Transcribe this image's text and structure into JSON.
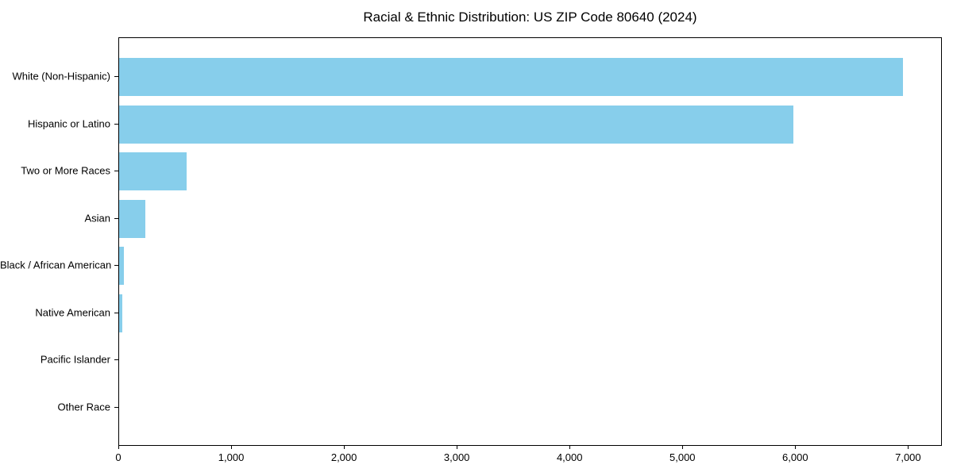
{
  "title": "Racial & Ethnic Distribution: US ZIP Code 80640 (2024)",
  "chart_data": {
    "type": "bar",
    "orientation": "horizontal",
    "title": "Racial & Ethnic Distribution: US ZIP Code 80640 (2024)",
    "xlabel": "",
    "ylabel": "",
    "categories": [
      "White (Non-Hispanic)",
      "Hispanic or Latino",
      "Two or More Races",
      "Asian",
      "Black / African American",
      "Native American",
      "Pacific Islander",
      "Other Race"
    ],
    "values": [
      6950,
      5975,
      600,
      235,
      40,
      30,
      0,
      0
    ],
    "xlim": [
      0,
      7300
    ],
    "x_ticks": [
      0,
      1000,
      2000,
      3000,
      4000,
      5000,
      6000,
      7000
    ],
    "x_tick_labels": [
      "0",
      "1,000",
      "2,000",
      "3,000",
      "4,000",
      "5,000",
      "6,000",
      "7,000"
    ],
    "bar_color": "#87CEEB",
    "background_color": "#ffffff",
    "spine_color": "#000000",
    "grid": false,
    "legend": null
  }
}
